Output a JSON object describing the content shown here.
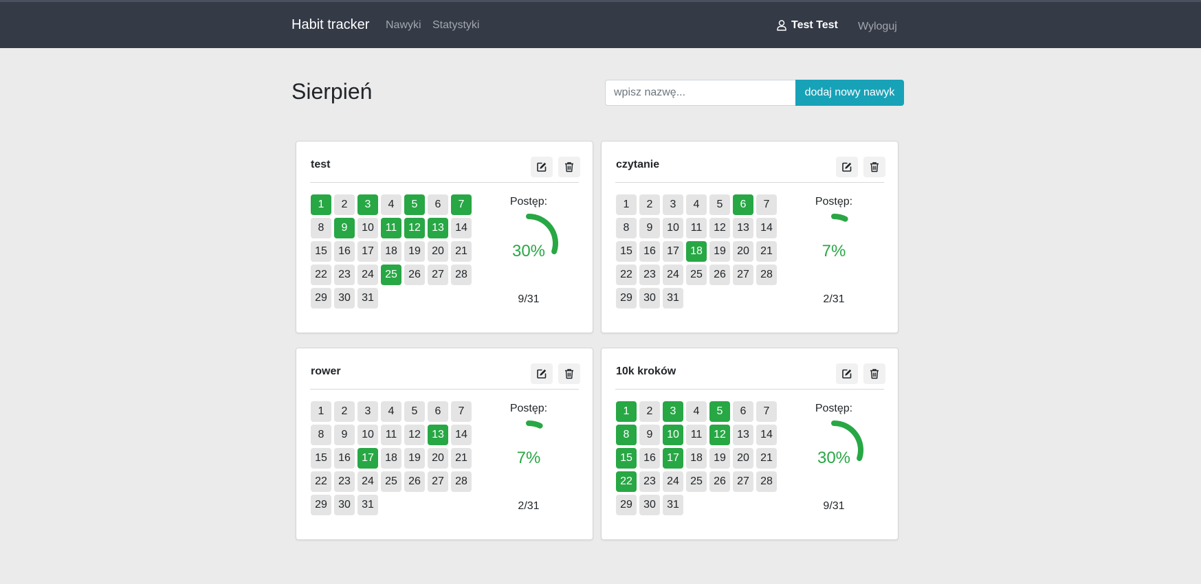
{
  "nav": {
    "brand": "Habit tracker",
    "links": [
      "Nawyki",
      "Statystyki"
    ],
    "user": "Test Test",
    "logout": "Wyloguj"
  },
  "header": {
    "month": "Sierpień",
    "input_placeholder": "wpisz nazwę...",
    "add_button": "dodaj nowy nawyk"
  },
  "progress_label": "Postęp:",
  "accent_color": "#28a745",
  "habits": [
    {
      "name": "test",
      "progress_percent": "30%",
      "progress_fraction": 0.3,
      "count": "9/31",
      "done_days": [
        1,
        3,
        5,
        7,
        9,
        11,
        12,
        13,
        25
      ]
    },
    {
      "name": "czytanie",
      "progress_percent": "7%",
      "progress_fraction": 0.07,
      "count": "2/31",
      "done_days": [
        6,
        18
      ]
    },
    {
      "name": "rower",
      "progress_percent": "7%",
      "progress_fraction": 0.07,
      "count": "2/31",
      "done_days": [
        13,
        17
      ]
    },
    {
      "name": "10k kroków",
      "progress_percent": "30%",
      "progress_fraction": 0.3,
      "count": "9/31",
      "done_days": [
        1,
        3,
        5,
        8,
        10,
        12,
        15,
        17,
        22
      ]
    }
  ],
  "days": [
    "1",
    "2",
    "3",
    "4",
    "5",
    "6",
    "7",
    "8",
    "9",
    "10",
    "11",
    "12",
    "13",
    "14",
    "15",
    "16",
    "17",
    "18",
    "19",
    "20",
    "21",
    "22",
    "23",
    "24",
    "25",
    "26",
    "27",
    "28",
    "29",
    "30",
    "31"
  ]
}
